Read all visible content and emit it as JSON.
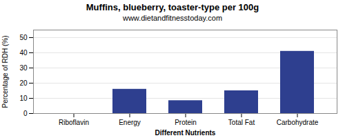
{
  "chart_data": {
    "type": "bar",
    "title": "Muffins, blueberry, toaster-type per 100g",
    "subtitle": "www.dietandfitnesstoday.com",
    "xlabel": "Different Nutrients",
    "ylabel": "Percentage of RDH (%)",
    "categories": [
      "Riboflavin",
      "Energy",
      "Protein",
      "Total Fat",
      "Carbohydrate"
    ],
    "values": [
      0,
      16,
      8.5,
      15,
      41
    ],
    "color": "#2e3f8f",
    "ylim": [
      0,
      55
    ],
    "yticks": [
      0,
      10,
      20,
      30,
      40,
      50
    ],
    "grid": true
  }
}
